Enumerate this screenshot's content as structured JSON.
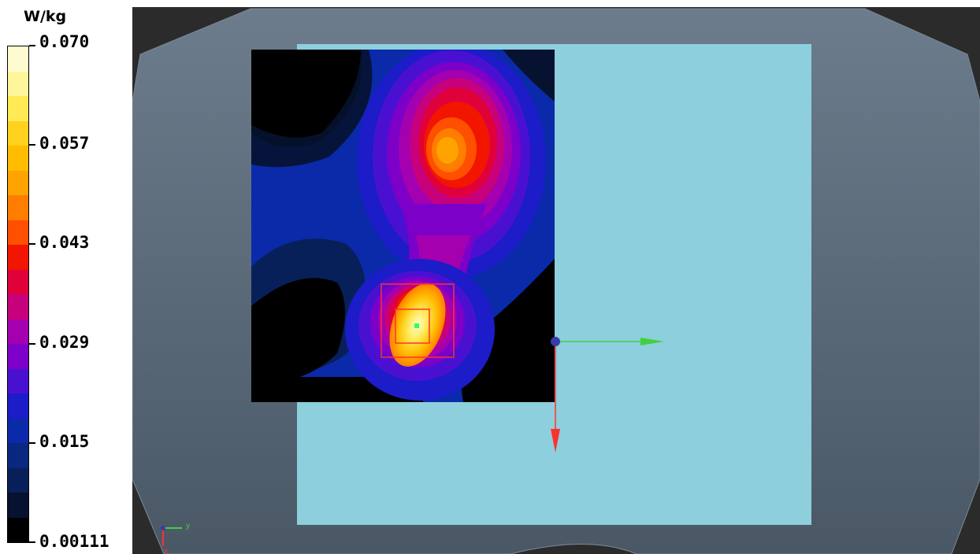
{
  "legend": {
    "unit": "W/kg",
    "labels": [
      "0.070",
      "0.057",
      "0.043",
      "0.029",
      "0.015",
      "0.00111"
    ],
    "colors": [
      "#fffbd0",
      "#fff59a",
      "#ffea55",
      "#ffd21e",
      "#ffbc00",
      "#ffa300",
      "#ff7d00",
      "#ff4f00",
      "#f21500",
      "#e0003a",
      "#c7007c",
      "#a400b0",
      "#7c00c8",
      "#4a10d2",
      "#1c1cc8",
      "#0a2aaa",
      "#0a2880",
      "#08205a",
      "#061230",
      "#000000"
    ]
  },
  "viewport": {
    "background_color": "#2b2b2b",
    "body_color": "#6d7d8d",
    "phantom_color": "#8dcfdc",
    "axis_colors": {
      "y": "#40d040",
      "x": "#ff3030",
      "origin": "#3a3aa8"
    },
    "triad_labels": {
      "y": "y",
      "x": "x"
    }
  }
}
